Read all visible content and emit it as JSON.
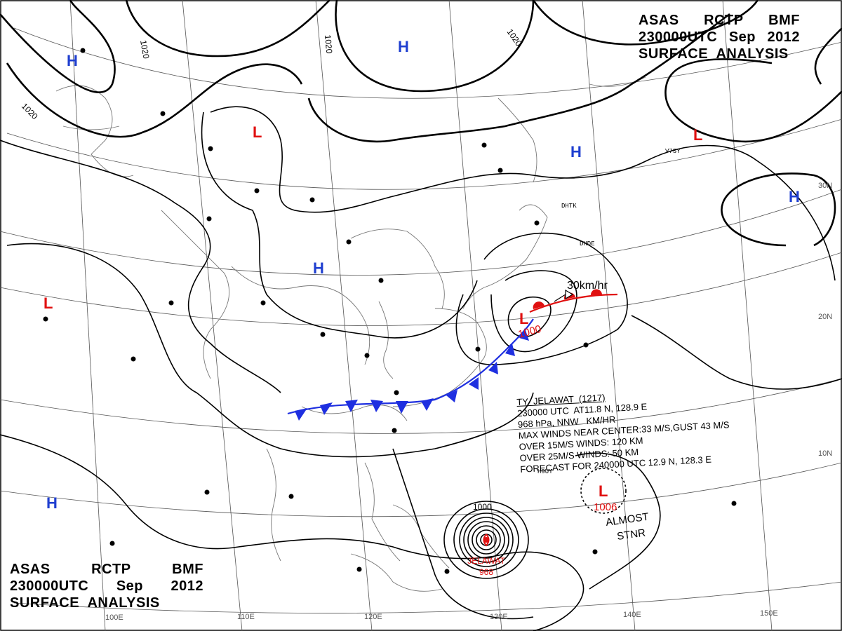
{
  "header": {
    "line1": [
      "ASAS",
      "RCTP",
      "BMF"
    ],
    "line2": [
      "230000UTC",
      "Sep",
      "2012"
    ],
    "line3": "SURFACE  ANALYSIS"
  },
  "isobar_labels": [
    "1020",
    "1020",
    "1020",
    "1020",
    "1000"
  ],
  "pressure_centers": [
    {
      "type": "H",
      "color": "#1f3fd0"
    },
    {
      "type": "H",
      "color": "#1f3fd0"
    },
    {
      "type": "H",
      "color": "#1f3fd0"
    },
    {
      "type": "H",
      "color": "#1f3fd0"
    },
    {
      "type": "H",
      "color": "#1f3fd0"
    },
    {
      "type": "H",
      "color": "#1f3fd0"
    },
    {
      "type": "L",
      "color": "#e01010"
    },
    {
      "type": "L",
      "color": "#e01010"
    },
    {
      "type": "L",
      "color": "#e01010",
      "value": "1000"
    },
    {
      "type": "L",
      "color": "#e01010",
      "value": "1006"
    },
    {
      "type": "L",
      "color": "#e01010"
    }
  ],
  "typhoon": {
    "name": "JELAWAT",
    "pressure": "968",
    "info_lines": [
      "TY  JELAWAT  (1217)",
      "230000 UTC  AT11.8 N, 128.9 E",
      "968 hPa, NNW   KM/HR",
      "MAX WINDS NEAR CENTER:33 M/S,GUST 43 M/S",
      "OVER 15M/S WINDS: 120 KM",
      "OVER 25M/S WINDS: 50 KM",
      "FORECAST FOR 240000 UTC 12.9 N, 128.3 E"
    ]
  },
  "low_motion": "30km/hr",
  "stationary_note": [
    "ALMOST",
    "STNR"
  ],
  "longitude_labels": [
    "110E",
    "120E",
    "130E",
    "140E",
    "150E",
    "100E"
  ],
  "latitude_labels": [
    "30N",
    "20N",
    "10N"
  ],
  "station_codes": [
    "DHTK",
    "DHDE",
    "H9UY",
    "V7SY"
  ],
  "colors": {
    "isobar": "#000000",
    "high": "#1f3fd0",
    "low": "#e01010",
    "cold_front": "#1e2fe0",
    "warm_front": "#e01010",
    "coast": "#777777",
    "grid": "#555555"
  }
}
